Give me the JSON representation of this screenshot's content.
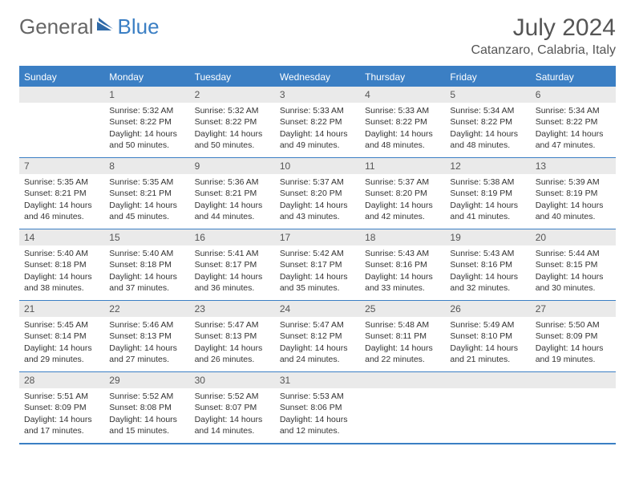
{
  "logo": {
    "text1": "General",
    "text2": "Blue"
  },
  "title": "July 2024",
  "subtitle": "Catanzaro, Calabria, Italy",
  "header_bg": "#3b7fc4",
  "daynum_bg": "#eaeaea",
  "weekdays": [
    "Sunday",
    "Monday",
    "Tuesday",
    "Wednesday",
    "Thursday",
    "Friday",
    "Saturday"
  ],
  "weeks": [
    [
      {
        "n": "",
        "lines": []
      },
      {
        "n": "1",
        "lines": [
          "Sunrise: 5:32 AM",
          "Sunset: 8:22 PM",
          "Daylight: 14 hours and 50 minutes."
        ]
      },
      {
        "n": "2",
        "lines": [
          "Sunrise: 5:32 AM",
          "Sunset: 8:22 PM",
          "Daylight: 14 hours and 50 minutes."
        ]
      },
      {
        "n": "3",
        "lines": [
          "Sunrise: 5:33 AM",
          "Sunset: 8:22 PM",
          "Daylight: 14 hours and 49 minutes."
        ]
      },
      {
        "n": "4",
        "lines": [
          "Sunrise: 5:33 AM",
          "Sunset: 8:22 PM",
          "Daylight: 14 hours and 48 minutes."
        ]
      },
      {
        "n": "5",
        "lines": [
          "Sunrise: 5:34 AM",
          "Sunset: 8:22 PM",
          "Daylight: 14 hours and 48 minutes."
        ]
      },
      {
        "n": "6",
        "lines": [
          "Sunrise: 5:34 AM",
          "Sunset: 8:22 PM",
          "Daylight: 14 hours and 47 minutes."
        ]
      }
    ],
    [
      {
        "n": "7",
        "lines": [
          "Sunrise: 5:35 AM",
          "Sunset: 8:21 PM",
          "Daylight: 14 hours and 46 minutes."
        ]
      },
      {
        "n": "8",
        "lines": [
          "Sunrise: 5:35 AM",
          "Sunset: 8:21 PM",
          "Daylight: 14 hours and 45 minutes."
        ]
      },
      {
        "n": "9",
        "lines": [
          "Sunrise: 5:36 AM",
          "Sunset: 8:21 PM",
          "Daylight: 14 hours and 44 minutes."
        ]
      },
      {
        "n": "10",
        "lines": [
          "Sunrise: 5:37 AM",
          "Sunset: 8:20 PM",
          "Daylight: 14 hours and 43 minutes."
        ]
      },
      {
        "n": "11",
        "lines": [
          "Sunrise: 5:37 AM",
          "Sunset: 8:20 PM",
          "Daylight: 14 hours and 42 minutes."
        ]
      },
      {
        "n": "12",
        "lines": [
          "Sunrise: 5:38 AM",
          "Sunset: 8:19 PM",
          "Daylight: 14 hours and 41 minutes."
        ]
      },
      {
        "n": "13",
        "lines": [
          "Sunrise: 5:39 AM",
          "Sunset: 8:19 PM",
          "Daylight: 14 hours and 40 minutes."
        ]
      }
    ],
    [
      {
        "n": "14",
        "lines": [
          "Sunrise: 5:40 AM",
          "Sunset: 8:18 PM",
          "Daylight: 14 hours and 38 minutes."
        ]
      },
      {
        "n": "15",
        "lines": [
          "Sunrise: 5:40 AM",
          "Sunset: 8:18 PM",
          "Daylight: 14 hours and 37 minutes."
        ]
      },
      {
        "n": "16",
        "lines": [
          "Sunrise: 5:41 AM",
          "Sunset: 8:17 PM",
          "Daylight: 14 hours and 36 minutes."
        ]
      },
      {
        "n": "17",
        "lines": [
          "Sunrise: 5:42 AM",
          "Sunset: 8:17 PM",
          "Daylight: 14 hours and 35 minutes."
        ]
      },
      {
        "n": "18",
        "lines": [
          "Sunrise: 5:43 AM",
          "Sunset: 8:16 PM",
          "Daylight: 14 hours and 33 minutes."
        ]
      },
      {
        "n": "19",
        "lines": [
          "Sunrise: 5:43 AM",
          "Sunset: 8:16 PM",
          "Daylight: 14 hours and 32 minutes."
        ]
      },
      {
        "n": "20",
        "lines": [
          "Sunrise: 5:44 AM",
          "Sunset: 8:15 PM",
          "Daylight: 14 hours and 30 minutes."
        ]
      }
    ],
    [
      {
        "n": "21",
        "lines": [
          "Sunrise: 5:45 AM",
          "Sunset: 8:14 PM",
          "Daylight: 14 hours and 29 minutes."
        ]
      },
      {
        "n": "22",
        "lines": [
          "Sunrise: 5:46 AM",
          "Sunset: 8:13 PM",
          "Daylight: 14 hours and 27 minutes."
        ]
      },
      {
        "n": "23",
        "lines": [
          "Sunrise: 5:47 AM",
          "Sunset: 8:13 PM",
          "Daylight: 14 hours and 26 minutes."
        ]
      },
      {
        "n": "24",
        "lines": [
          "Sunrise: 5:47 AM",
          "Sunset: 8:12 PM",
          "Daylight: 14 hours and 24 minutes."
        ]
      },
      {
        "n": "25",
        "lines": [
          "Sunrise: 5:48 AM",
          "Sunset: 8:11 PM",
          "Daylight: 14 hours and 22 minutes."
        ]
      },
      {
        "n": "26",
        "lines": [
          "Sunrise: 5:49 AM",
          "Sunset: 8:10 PM",
          "Daylight: 14 hours and 21 minutes."
        ]
      },
      {
        "n": "27",
        "lines": [
          "Sunrise: 5:50 AM",
          "Sunset: 8:09 PM",
          "Daylight: 14 hours and 19 minutes."
        ]
      }
    ],
    [
      {
        "n": "28",
        "lines": [
          "Sunrise: 5:51 AM",
          "Sunset: 8:09 PM",
          "Daylight: 14 hours and 17 minutes."
        ]
      },
      {
        "n": "29",
        "lines": [
          "Sunrise: 5:52 AM",
          "Sunset: 8:08 PM",
          "Daylight: 14 hours and 15 minutes."
        ]
      },
      {
        "n": "30",
        "lines": [
          "Sunrise: 5:52 AM",
          "Sunset: 8:07 PM",
          "Daylight: 14 hours and 14 minutes."
        ]
      },
      {
        "n": "31",
        "lines": [
          "Sunrise: 5:53 AM",
          "Sunset: 8:06 PM",
          "Daylight: 14 hours and 12 minutes."
        ]
      },
      {
        "n": "",
        "lines": []
      },
      {
        "n": "",
        "lines": []
      },
      {
        "n": "",
        "lines": []
      }
    ]
  ]
}
